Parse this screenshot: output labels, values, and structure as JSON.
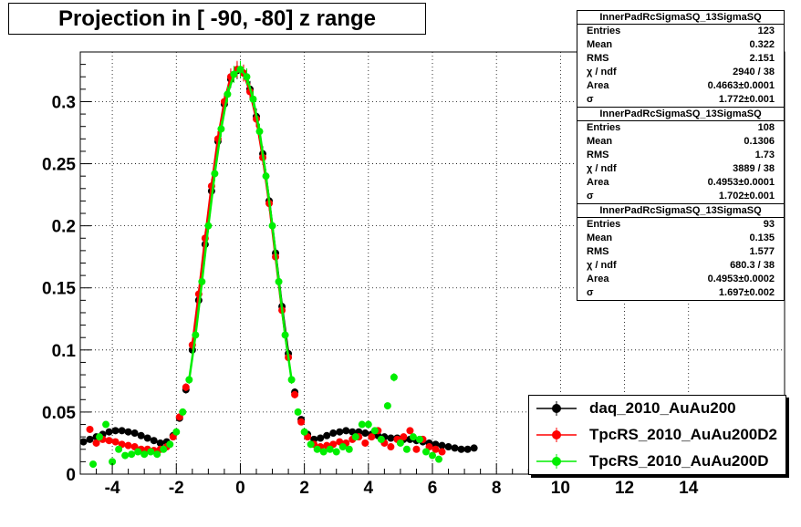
{
  "title": "Projection in [ -90, -80] z range",
  "colors": {
    "daq": "#000000",
    "d2": "#ff0000",
    "d": "#00ee00"
  },
  "stats": [
    {
      "name": "InnerPadRcSigmaSQ_13SigmaSQ",
      "rows": [
        {
          "label": "Entries",
          "value": "123"
        },
        {
          "label": "Mean",
          "value": "0.322"
        },
        {
          "label": "RMS",
          "value": "2.151"
        },
        {
          "label": "χ  / ndf",
          "value": "2940 / 38"
        },
        {
          "label": "Area",
          "value": "0.4663±0.0001"
        },
        {
          "label": "σ",
          "value": "1.772±0.001"
        }
      ]
    },
    {
      "name": "InnerPadRcSigmaSQ_13SigmaSQ",
      "rows": [
        {
          "label": "Entries",
          "value": "108"
        },
        {
          "label": "Mean",
          "value": "0.1306"
        },
        {
          "label": "RMS",
          "value": "1.73"
        },
        {
          "label": "χ  / ndf",
          "value": "3889 / 38"
        },
        {
          "label": "Area",
          "value": "0.4953±0.0001"
        },
        {
          "label": "σ",
          "value": "1.702±0.001"
        }
      ]
    },
    {
      "name": "InnerPadRcSigmaSQ_13SigmaSQ",
      "rows": [
        {
          "label": "Entries",
          "value": "93"
        },
        {
          "label": "Mean",
          "value": "0.135"
        },
        {
          "label": "RMS",
          "value": "1.577"
        },
        {
          "label": "χ  / ndf",
          "value": "680.3 / 38"
        },
        {
          "label": "Area",
          "value": "0.4953±0.0002"
        },
        {
          "label": "σ",
          "value": "1.697±0.002"
        }
      ]
    }
  ],
  "chart_data": {
    "type": "scatter",
    "title": "Projection in [ -90, -80] z range",
    "xlim": [
      -5,
      17
    ],
    "ylim": [
      0,
      0.34
    ],
    "xticks_major": [
      -4,
      -2,
      0,
      2,
      4,
      6,
      8,
      10,
      12,
      14
    ],
    "xtick_labels": [
      "-4",
      "-2",
      "0",
      "2",
      "4",
      "6",
      "8",
      "10",
      "12",
      "14"
    ],
    "yticks_major": [
      0,
      0.05,
      0.1,
      0.15,
      0.2,
      0.25,
      0.3
    ],
    "ytick_labels": [
      "0",
      "0.05",
      "0.1",
      "0.15",
      "0.2",
      "0.25",
      "0.3"
    ],
    "grid": true,
    "legend_position": "bottom-right",
    "series": [
      {
        "name": "daq_2010_AuAu200",
        "color": "#000000",
        "x": [
          -4.9,
          -4.7,
          -4.5,
          -4.3,
          -4.1,
          -3.9,
          -3.7,
          -3.5,
          -3.3,
          -3.1,
          -2.9,
          -2.7,
          -2.5,
          -2.3,
          -2.1,
          -1.9,
          -1.7,
          -1.5,
          -1.3,
          -1.1,
          -0.9,
          -0.7,
          -0.5,
          -0.3,
          -0.1,
          0.1,
          0.3,
          0.5,
          0.7,
          0.9,
          1.1,
          1.3,
          1.5,
          1.7,
          1.9,
          2.1,
          2.3,
          2.5,
          2.7,
          2.9,
          3.1,
          3.3,
          3.5,
          3.7,
          3.9,
          4.1,
          4.3,
          4.5,
          4.7,
          4.9,
          5.1,
          5.3,
          5.5,
          5.7,
          5.9,
          6.1,
          6.3,
          6.5,
          6.7,
          6.9,
          7.1,
          7.3
        ],
        "y": [
          0.026,
          0.028,
          0.03,
          0.032,
          0.034,
          0.035,
          0.035,
          0.034,
          0.033,
          0.031,
          0.029,
          0.027,
          0.025,
          0.026,
          0.031,
          0.045,
          0.068,
          0.1,
          0.14,
          0.185,
          0.228,
          0.268,
          0.298,
          0.318,
          0.325,
          0.323,
          0.31,
          0.288,
          0.258,
          0.22,
          0.178,
          0.135,
          0.097,
          0.066,
          0.044,
          0.032,
          0.028,
          0.029,
          0.031,
          0.033,
          0.034,
          0.035,
          0.034,
          0.034,
          0.033,
          0.032,
          0.031,
          0.03,
          0.029,
          0.029,
          0.028,
          0.028,
          0.027,
          0.026,
          0.025,
          0.024,
          0.023,
          0.022,
          0.021,
          0.02,
          0.02,
          0.021
        ]
      },
      {
        "name": "TpcRS_2010_AuAu200D2",
        "color": "#ff0000",
        "x": [
          -4.7,
          -4.5,
          -4.3,
          -4.1,
          -3.9,
          -3.7,
          -3.5,
          -3.3,
          -3.1,
          -2.9,
          -2.7,
          -2.5,
          -2.3,
          -2.1,
          -1.9,
          -1.7,
          -1.5,
          -1.3,
          -1.1,
          -0.9,
          -0.7,
          -0.5,
          -0.3,
          -0.1,
          0.1,
          0.3,
          0.5,
          0.7,
          0.9,
          1.1,
          1.3,
          1.5,
          1.7,
          1.9,
          2.1,
          2.3,
          2.5,
          2.7,
          2.9,
          3.1,
          3.3,
          3.5,
          3.7,
          3.9,
          4.1,
          4.3,
          4.5,
          4.7,
          4.9,
          5.1,
          5.3,
          5.5,
          5.7,
          5.9,
          6.1,
          6.3
        ],
        "y": [
          0.036,
          0.025,
          0.028,
          0.027,
          0.026,
          0.024,
          0.023,
          0.022,
          0.02,
          0.02,
          0.019,
          0.02,
          0.022,
          0.03,
          0.046,
          0.07,
          0.104,
          0.145,
          0.19,
          0.232,
          0.27,
          0.3,
          0.32,
          0.326,
          0.323,
          0.308,
          0.286,
          0.255,
          0.218,
          0.175,
          0.132,
          0.094,
          0.064,
          0.042,
          0.03,
          0.024,
          0.022,
          0.023,
          0.024,
          0.026,
          0.025,
          0.028,
          0.03,
          0.025,
          0.03,
          0.035,
          0.025,
          0.022,
          0.028,
          0.03,
          0.035,
          0.02,
          0.028,
          0.022,
          0.02,
          0.018
        ]
      },
      {
        "name": "TpcRS_2010_AuAu200D",
        "color": "#00ee00",
        "x": [
          -4.6,
          -4.4,
          -4.2,
          -4.0,
          -3.8,
          -3.6,
          -3.4,
          -3.2,
          -3.0,
          -2.8,
          -2.6,
          -2.4,
          -2.2,
          -2.0,
          -1.8,
          -1.6,
          -1.4,
          -1.2,
          -1.0,
          -0.8,
          -0.6,
          -0.4,
          -0.2,
          0.0,
          0.2,
          0.4,
          0.6,
          0.8,
          1.0,
          1.2,
          1.4,
          1.6,
          1.8,
          2.0,
          2.2,
          2.4,
          2.6,
          2.8,
          3.0,
          3.2,
          3.4,
          3.6,
          3.8,
          4.0,
          4.2,
          4.4,
          4.6,
          4.8,
          5.0,
          5.2,
          5.4,
          5.6,
          5.8,
          6.0,
          6.2
        ],
        "y": [
          0.008,
          0.03,
          0.04,
          0.01,
          0.02,
          0.015,
          0.016,
          0.018,
          0.016,
          0.018,
          0.016,
          0.02,
          0.024,
          0.034,
          0.05,
          0.076,
          0.112,
          0.155,
          0.2,
          0.242,
          0.278,
          0.306,
          0.322,
          0.326,
          0.32,
          0.302,
          0.276,
          0.24,
          0.2,
          0.155,
          0.112,
          0.076,
          0.05,
          0.034,
          0.024,
          0.02,
          0.018,
          0.02,
          0.018,
          0.022,
          0.02,
          0.03,
          0.04,
          0.04,
          0.035,
          0.028,
          0.055,
          0.078,
          0.025,
          0.02,
          0.03,
          0.028,
          0.018,
          0.015,
          0.012
        ]
      }
    ]
  },
  "legend": [
    {
      "name": "daq_2010_AuAu200",
      "color": "#000000"
    },
    {
      "name": "TpcRS_2010_AuAu200D2",
      "color": "#ff0000"
    },
    {
      "name": "TpcRS_2010_AuAu200D",
      "color": "#00ee00"
    }
  ]
}
